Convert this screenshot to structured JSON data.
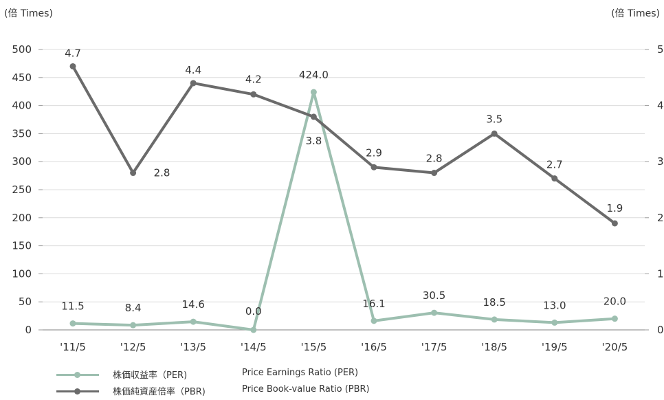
{
  "chart_data": {
    "type": "line",
    "categories": [
      "'11/5",
      "'12/5",
      "'13/5",
      "'14/5",
      "'15/5",
      "'16/5",
      "'17/5",
      "'18/5",
      "'19/5",
      "'20/5"
    ],
    "left_axis": {
      "unit": "(倍 Times)",
      "range": [
        0,
        500
      ],
      "ticks": [
        "0",
        "50",
        "100",
        "150",
        "200",
        "250",
        "300",
        "350",
        "400",
        "450",
        "500"
      ]
    },
    "right_axis": {
      "unit": "(倍 Times)",
      "range": [
        0,
        5
      ],
      "ticks": [
        "0",
        "1",
        "2",
        "3",
        "4",
        "5"
      ]
    },
    "grid": true,
    "legend_position": "bottom-left",
    "series": [
      {
        "name": "株価収益率（PER)",
        "name_en": "Price Earnings Ratio (PER)",
        "axis": "left",
        "color": "#9dbfb0",
        "values": [
          11.5,
          8.4,
          14.6,
          0.0,
          424.0,
          16.1,
          30.5,
          18.5,
          13.0,
          20.0
        ],
        "labels": [
          "11.5",
          "8.4",
          "14.6",
          "0.0",
          "424.0",
          "16.1",
          "30.5",
          "18.5",
          "13.0",
          "20.0"
        ]
      },
      {
        "name": "株価純資産倍率（PBR)",
        "name_en": "Price Book-value Ratio (PBR)",
        "axis": "right",
        "color": "#6b6b6b",
        "values": [
          4.7,
          2.8,
          4.4,
          4.2,
          3.8,
          2.9,
          2.8,
          3.5,
          2.7,
          1.9
        ],
        "labels": [
          "4.7",
          "2.8",
          "4.4",
          "4.2",
          "3.8",
          "2.9",
          "2.8",
          "3.5",
          "2.7",
          "1.9"
        ]
      }
    ]
  }
}
